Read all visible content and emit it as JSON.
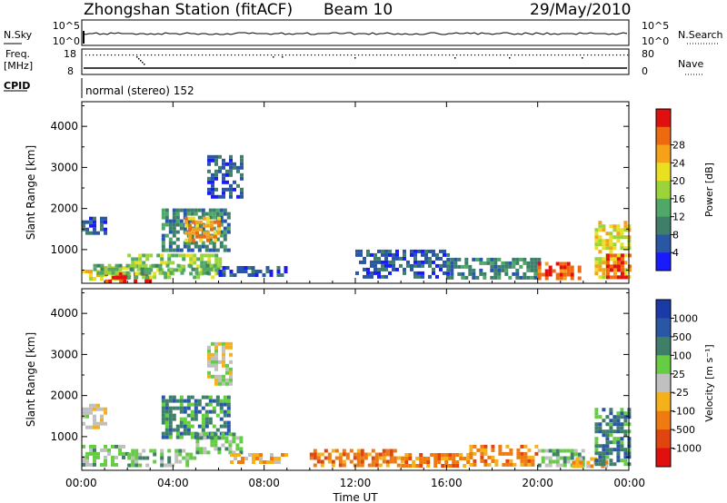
{
  "header": {
    "station": "Zhongshan Station (fitACF)",
    "beam": "Beam 10",
    "date": "29/May/2010"
  },
  "status": {
    "nsky_label": "N.Sky",
    "nsearch_label": "N.Search",
    "freq_label": "Freq.",
    "freq_unit": "[MHz]",
    "nave_label": "Nave",
    "cpid_label": "CPID",
    "cpid_text": "normal (stereo) 152",
    "nsky_ticks": [
      "10^5",
      "10^0"
    ],
    "nsearch_ticks": [
      "10^5",
      "10^0"
    ],
    "freq_ticks": [
      "18",
      "8"
    ],
    "nave_ticks": [
      "80",
      "0"
    ]
  },
  "chart_data": [
    {
      "type": "heatmap",
      "name": "power-panel",
      "xlabel": "Time UT",
      "ylabel": "Slant Range [km]",
      "xlim": [
        0,
        24
      ],
      "ylim": [
        180,
        4600
      ],
      "x_tick_labels": [
        "00:00",
        "04:00",
        "08:00",
        "12:00",
        "16:00",
        "20:00",
        "00:00"
      ],
      "y_ticks": [
        1000,
        2000,
        3000,
        4000
      ],
      "y_tick_labels": [
        "1000",
        "2000",
        "3000",
        "4000"
      ],
      "colorbar": {
        "label": "Power [dB]",
        "ticks": [
          "4",
          "8",
          "12",
          "16",
          "20",
          "24",
          "28"
        ],
        "colors": [
          "#1a1aff",
          "#2a56a6",
          "#3f7f6a",
          "#4fa868",
          "#9bd43a",
          "#e8e020",
          "#f5a21a",
          "#ee6a10",
          "#e01010"
        ]
      },
      "patches": [
        {
          "t": [
            0.0,
            2.0
          ],
          "r": [
            300,
            600
          ],
          "c": 5
        },
        {
          "t": [
            1.0,
            3.0
          ],
          "r": [
            250,
            450
          ],
          "c": 8
        },
        {
          "t": [
            2.0,
            6.0
          ],
          "r": [
            300,
            900
          ],
          "c": 4
        },
        {
          "t": [
            0.0,
            1.0
          ],
          "r": [
            1400,
            1800
          ],
          "c": 1
        },
        {
          "t": [
            0.5,
            6.0
          ],
          "r": [
            450,
            650
          ],
          "c": 3
        },
        {
          "t": [
            3.5,
            6.5
          ],
          "r": [
            1000,
            2000
          ],
          "c": 2
        },
        {
          "t": [
            4.5,
            6.0
          ],
          "r": [
            1200,
            1800
          ],
          "c": 6
        },
        {
          "t": [
            6.0,
            9.0
          ],
          "r": [
            350,
            600
          ],
          "c": 1
        },
        {
          "t": [
            5.5,
            7.0
          ],
          "r": [
            2300,
            3300
          ],
          "c": 1
        },
        {
          "t": [
            12.0,
            16.0
          ],
          "r": [
            300,
            1000
          ],
          "c": 1
        },
        {
          "t": [
            16.0,
            20.0
          ],
          "r": [
            300,
            800
          ],
          "c": 2
        },
        {
          "t": [
            20.0,
            22.0
          ],
          "r": [
            300,
            700
          ],
          "c": 7
        },
        {
          "t": [
            22.5,
            24.0
          ],
          "r": [
            300,
            1700
          ],
          "c": 5
        },
        {
          "t": [
            23.0,
            24.0
          ],
          "r": [
            300,
            900
          ],
          "c": 7
        }
      ]
    },
    {
      "type": "heatmap",
      "name": "velocity-panel",
      "xlabel": "Time UT",
      "ylabel": "Slant Range [km]",
      "xlim": [
        0,
        24
      ],
      "ylim": [
        180,
        4600
      ],
      "x_tick_labels": [
        "00:00",
        "04:00",
        "08:00",
        "12:00",
        "16:00",
        "20:00",
        "00:00"
      ],
      "y_ticks": [
        1000,
        2000,
        3000,
        4000
      ],
      "y_tick_labels": [
        "1000",
        "2000",
        "3000",
        "4000"
      ],
      "colorbar": {
        "label": "Velocity [m s⁻¹]",
        "ticks": [
          "1000",
          "500",
          "100",
          "25",
          "-25",
          "-100",
          "-500",
          "-1000"
        ],
        "colors": [
          "#1a3aa8",
          "#2a56a6",
          "#3f7f6a",
          "#66cc44",
          "#c0c0c0",
          "#f5b01a",
          "#ee7a10",
          "#e04510",
          "#e01010"
        ]
      },
      "patches": [
        {
          "t": [
            0.0,
            2.0
          ],
          "r": [
            300,
            800
          ],
          "c": 3
        },
        {
          "t": [
            0.0,
            1.0
          ],
          "r": [
            1200,
            1800
          ],
          "c": 4
        },
        {
          "t": [
            2.0,
            5.0
          ],
          "r": [
            300,
            700
          ],
          "c": 3
        },
        {
          "t": [
            3.5,
            6.5
          ],
          "r": [
            1000,
            2000
          ],
          "c": 2
        },
        {
          "t": [
            5.0,
            7.0
          ],
          "r": [
            600,
            1100
          ],
          "c": 3
        },
        {
          "t": [
            6.5,
            9.0
          ],
          "r": [
            350,
            600
          ],
          "c": 5
        },
        {
          "t": [
            5.5,
            6.5
          ],
          "r": [
            2300,
            3300
          ],
          "c": 4
        },
        {
          "t": [
            10.0,
            14.0
          ],
          "r": [
            300,
            700
          ],
          "c": 6
        },
        {
          "t": [
            14.0,
            17.0
          ],
          "r": [
            300,
            600
          ],
          "c": 6
        },
        {
          "t": [
            17.0,
            20.0
          ],
          "r": [
            300,
            800
          ],
          "c": 6
        },
        {
          "t": [
            20.0,
            22.0
          ],
          "r": [
            300,
            700
          ],
          "c": 3
        },
        {
          "t": [
            21.5,
            23.0
          ],
          "r": [
            300,
            500
          ],
          "c": 5
        },
        {
          "t": [
            22.5,
            24.0
          ],
          "r": [
            300,
            1700
          ],
          "c": 2
        }
      ]
    }
  ]
}
